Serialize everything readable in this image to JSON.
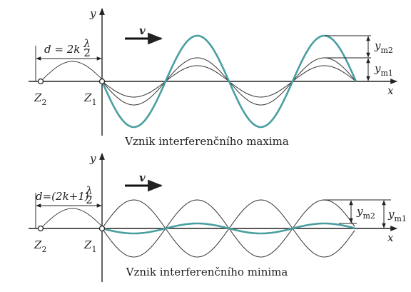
{
  "panels": [
    {
      "y_axis": "y",
      "x_axis": "x",
      "velocity": "v",
      "distance": {
        "lhs": "d = 2k",
        "num": "λ",
        "den": "2"
      },
      "sources": [
        {
          "main": "Z",
          "sub": "2"
        },
        {
          "main": "Z",
          "sub": "1"
        }
      ],
      "amplitudes": [
        {
          "main": "y",
          "sub": "m2"
        },
        {
          "main": "y",
          "sub": "m1"
        }
      ],
      "caption": "Vznik interferenčního maxima"
    },
    {
      "y_axis": "y",
      "x_axis": "x",
      "velocity": "v",
      "distance": {
        "lhs": "d=(2k+1)",
        "num": "λ",
        "den": "2"
      },
      "sources": [
        {
          "main": "Z",
          "sub": "2"
        },
        {
          "main": "Z",
          "sub": "1"
        }
      ],
      "amplitudes": [
        {
          "main": "y",
          "sub": "m2"
        },
        {
          "main": "y",
          "sub": "m1"
        }
      ],
      "caption": "Vznik interferenčního minima"
    }
  ]
}
